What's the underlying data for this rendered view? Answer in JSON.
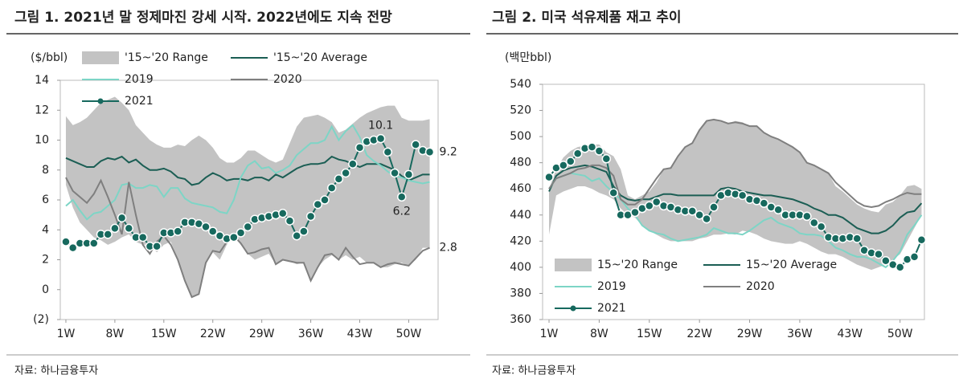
{
  "chart_data": [
    {
      "type": "line",
      "title": "그림 1. 2021년 말 정제마진 강세 시작. 2022년에도 지속 전망",
      "y_label": "($/bbl)",
      "source": "자료: 하나금융투자",
      "x": [
        1,
        2,
        3,
        4,
        5,
        6,
        7,
        8,
        9,
        10,
        11,
        12,
        13,
        14,
        15,
        16,
        17,
        18,
        19,
        20,
        21,
        22,
        23,
        24,
        25,
        26,
        27,
        28,
        29,
        30,
        31,
        32,
        33,
        34,
        35,
        36,
        37,
        38,
        39,
        40,
        41,
        42,
        43,
        44,
        45,
        46,
        47,
        48,
        49,
        50,
        51,
        52,
        53
      ],
      "xlim": [
        0.2,
        54.2
      ],
      "xticks": [
        {
          "value": 1,
          "label": "1W"
        },
        {
          "value": 8,
          "label": "8W"
        },
        {
          "value": 15,
          "label": "15W"
        },
        {
          "value": 22,
          "label": "22W"
        },
        {
          "value": 29,
          "label": "29W"
        },
        {
          "value": 36,
          "label": "36W"
        },
        {
          "value": 43,
          "label": "43W"
        },
        {
          "value": 50,
          "label": "50W"
        }
      ],
      "ylim": [
        -2,
        14
      ],
      "yticks": [
        {
          "value": -2,
          "label": "(2)"
        },
        0,
        2,
        4,
        6,
        8,
        10,
        12,
        14
      ],
      "grid": false,
      "legend_position": "top",
      "series": [
        {
          "name": "'15~'20 Range",
          "color": "#c3c3c3",
          "low": [
            7.0,
            5.5,
            4.5,
            4.0,
            3.5,
            3.3,
            3.0,
            3.2,
            3.5,
            3.7,
            3.2,
            3.0,
            3.0,
            2.5,
            3.0,
            3.2,
            2.0,
            0.5,
            -0.5,
            -0.3,
            1.8,
            2.5,
            2.0,
            3.0,
            3.6,
            3.0,
            2.4,
            2.0,
            2.2,
            2.4,
            1.7,
            2.0,
            1.9,
            1.7,
            1.8,
            0.6,
            1.5,
            2.0,
            2.3,
            2.0,
            2.3,
            2.0,
            2.2,
            1.8,
            1.8,
            1.5,
            1.5,
            1.7,
            1.8,
            1.6,
            2.0,
            2.8,
            2.8
          ],
          "high": [
            11.6,
            11.0,
            11.2,
            11.5,
            12.0,
            12.5,
            12.7,
            12.9,
            12.5,
            12.0,
            11.0,
            10.5,
            10.0,
            9.7,
            9.5,
            9.5,
            9.7,
            9.6,
            10.0,
            10.3,
            10.0,
            9.5,
            8.8,
            8.5,
            8.5,
            8.8,
            9.3,
            9.3,
            9.0,
            8.7,
            8.5,
            8.7,
            9.8,
            10.9,
            11.5,
            11.6,
            11.7,
            11.5,
            11.2,
            10.5,
            10.7,
            11.1,
            11.5,
            11.8,
            12.0,
            12.2,
            12.3,
            12.3,
            11.5,
            11.3,
            11.3,
            11.3,
            11.4
          ]
        },
        {
          "name": "'15~'20 Average",
          "color": "#1b5e54",
          "values": [
            8.8,
            8.6,
            8.4,
            8.2,
            8.2,
            8.6,
            8.8,
            8.7,
            8.9,
            8.5,
            8.7,
            8.3,
            8.0,
            8.0,
            8.1,
            7.9,
            7.5,
            7.4,
            7.0,
            7.1,
            7.5,
            7.8,
            7.6,
            7.3,
            7.4,
            7.4,
            7.3,
            7.5,
            7.5,
            7.3,
            7.7,
            7.5,
            7.8,
            8.1,
            8.3,
            8.4,
            8.4,
            8.5,
            8.9,
            8.7,
            8.6,
            8.4,
            8.2,
            8.4,
            8.4,
            8.4,
            8.2,
            8.0,
            7.6,
            7.3,
            7.5,
            7.7,
            7.7
          ]
        },
        {
          "name": "2019",
          "color": "#7dd5c6",
          "values": [
            5.6,
            6.0,
            5.3,
            4.7,
            5.1,
            5.2,
            5.6,
            6.0,
            7.0,
            7.1,
            6.8,
            6.8,
            7.0,
            6.9,
            6.2,
            6.8,
            6.8,
            6.1,
            5.8,
            5.7,
            5.6,
            5.5,
            5.2,
            5.1,
            6.0,
            7.5,
            8.3,
            8.6,
            8.1,
            8.2,
            7.8,
            8.0,
            8.3,
            9.0,
            9.4,
            9.8,
            9.8,
            10.0,
            10.9,
            10.0,
            10.6,
            11.0,
            10.2,
            9.0,
            8.6,
            8.3,
            7.9,
            7.6,
            7.5,
            7.3,
            7.2,
            7.1,
            7.2
          ]
        },
        {
          "name": "2020",
          "color": "#7f7f7f",
          "values": [
            7.5,
            6.6,
            6.2,
            5.8,
            6.4,
            7.3,
            6.2,
            5.0,
            3.7,
            7.2,
            5.0,
            3.0,
            2.4,
            3.2,
            3.6,
            3.0,
            2.0,
            0.6,
            -0.5,
            -0.3,
            1.8,
            2.6,
            2.5,
            3.2,
            3.6,
            3.1,
            2.4,
            2.5,
            2.7,
            2.8,
            1.7,
            2.0,
            1.9,
            1.8,
            1.8,
            0.6,
            1.5,
            2.3,
            2.4,
            2.0,
            2.8,
            2.2,
            1.7,
            1.8,
            1.8,
            1.5,
            1.7,
            1.8,
            1.7,
            1.6,
            2.1,
            2.6,
            2.8
          ]
        },
        {
          "name": "2021",
          "color": "#17695e",
          "marker": true,
          "values": [
            3.2,
            2.8,
            3.1,
            3.1,
            3.1,
            3.7,
            3.7,
            4.1,
            4.8,
            4.1,
            3.5,
            3.5,
            2.9,
            2.9,
            3.8,
            3.8,
            3.9,
            4.5,
            4.5,
            4.4,
            4.2,
            3.9,
            3.6,
            3.4,
            3.5,
            3.8,
            4.2,
            4.7,
            4.8,
            4.9,
            5.0,
            5.1,
            4.6,
            3.6,
            3.9,
            4.9,
            5.7,
            6.0,
            6.8,
            7.4,
            7.8,
            8.4,
            9.5,
            9.9,
            10.0,
            10.1,
            9.2,
            7.8,
            6.2,
            7.7,
            9.7,
            9.3,
            9.2
          ]
        }
      ],
      "annotations": [
        {
          "text": "10.1",
          "x": 46,
          "y": 10.1,
          "anchor": "above"
        },
        {
          "text": "6.2",
          "x": 49,
          "y": 6.2,
          "anchor": "below"
        },
        {
          "text": "9.2",
          "x": 53,
          "y": 9.2,
          "anchor": "right"
        },
        {
          "text": "2.8",
          "x": 53,
          "y": 2.8,
          "anchor": "right"
        }
      ]
    },
    {
      "type": "line",
      "title": "그림 2. 미국 석유제품 재고 추이",
      "y_label": "(백만bbl)",
      "source": "자료: 하나금융투자",
      "x": [
        1,
        2,
        3,
        4,
        5,
        6,
        7,
        8,
        9,
        10,
        11,
        12,
        13,
        14,
        15,
        16,
        17,
        18,
        19,
        20,
        21,
        22,
        23,
        24,
        25,
        26,
        27,
        28,
        29,
        30,
        31,
        32,
        33,
        34,
        35,
        36,
        37,
        38,
        39,
        40,
        41,
        42,
        43,
        44,
        45,
        46,
        47,
        48,
        49,
        50,
        51,
        52,
        53
      ],
      "xlim": [
        0.1,
        53.4
      ],
      "xticks": [
        {
          "value": 1,
          "label": "1W"
        },
        {
          "value": 8,
          "label": "8W"
        },
        {
          "value": 15,
          "label": "15W"
        },
        {
          "value": 22,
          "label": "22W"
        },
        {
          "value": 29,
          "label": "29W"
        },
        {
          "value": 36,
          "label": "36W"
        },
        {
          "value": 43,
          "label": "43W"
        },
        {
          "value": 50,
          "label": "50W"
        }
      ],
      "ylim": [
        360,
        540
      ],
      "yticks": [
        360,
        380,
        400,
        420,
        440,
        460,
        480,
        500,
        520,
        540
      ],
      "grid": false,
      "legend_position": "bottom",
      "series": [
        {
          "name": "15~'20 Range",
          "color": "#c3c3c3",
          "low": [
            425,
            455,
            458,
            460,
            462,
            462,
            460,
            457,
            455,
            452,
            445,
            440,
            438,
            432,
            428,
            425,
            422,
            420,
            420,
            420,
            420,
            422,
            423,
            425,
            425,
            426,
            425,
            428,
            427,
            425,
            422,
            420,
            419,
            418,
            418,
            420,
            418,
            415,
            412,
            410,
            410,
            408,
            405,
            402,
            400,
            398,
            400,
            402,
            406,
            410,
            420,
            430,
            440
          ],
          "high": [
            460,
            475,
            484,
            489,
            492,
            493,
            494,
            494,
            488,
            485,
            475,
            455,
            452,
            455,
            458,
            465,
            475,
            476,
            485,
            492,
            495,
            505,
            512,
            513,
            512,
            510,
            512,
            511,
            508,
            508,
            503,
            500,
            498,
            495,
            492,
            488,
            480,
            478,
            475,
            472,
            462,
            458,
            453,
            448,
            445,
            443,
            442,
            448,
            450,
            455,
            462,
            463,
            460
          ]
        },
        {
          "name": "15~'20 Average",
          "color": "#1b5e54",
          "values": [
            458,
            470,
            474,
            476,
            477,
            478,
            477,
            475,
            473,
            462,
            455,
            452,
            451,
            452,
            452,
            454,
            456,
            456,
            455,
            455,
            455,
            455,
            455,
            455,
            460,
            461,
            460,
            458,
            457,
            456,
            455,
            455,
            454,
            453,
            452,
            450,
            448,
            445,
            443,
            440,
            440,
            438,
            434,
            430,
            428,
            426,
            426,
            428,
            432,
            438,
            442,
            443,
            449
          ]
        },
        {
          "name": "2019",
          "color": "#7dd5c6",
          "values": [
            460,
            468,
            470,
            472,
            471,
            470,
            466,
            468,
            462,
            457,
            452,
            445,
            440,
            432,
            428,
            426,
            425,
            422,
            420,
            421,
            422,
            423,
            425,
            430,
            428,
            426,
            426,
            425,
            428,
            432,
            436,
            438,
            434,
            432,
            430,
            426,
            425,
            425,
            424,
            420,
            415,
            413,
            410,
            408,
            408,
            406,
            403,
            400,
            405,
            412,
            425,
            432,
            440
          ]
        },
        {
          "name": "2020",
          "color": "#7f7f7f",
          "values": [
            460,
            468,
            470,
            472,
            475,
            476,
            478,
            478,
            476,
            470,
            452,
            448,
            448,
            452,
            460,
            468,
            475,
            476,
            485,
            492,
            495,
            505,
            512,
            513,
            512,
            510,
            511,
            510,
            508,
            508,
            503,
            500,
            498,
            495,
            492,
            488,
            480,
            478,
            475,
            472,
            465,
            460,
            455,
            450,
            447,
            446,
            447,
            450,
            452,
            455,
            457,
            456,
            456
          ]
        },
        {
          "name": "2021",
          "color": "#17695e",
          "marker": true,
          "values": [
            469,
            476,
            478,
            481,
            487,
            491,
            492,
            489,
            483,
            457,
            440,
            440,
            442,
            445,
            447,
            450,
            447,
            446,
            444,
            443,
            443,
            440,
            437,
            446,
            455,
            457,
            456,
            455,
            452,
            451,
            449,
            446,
            444,
            440,
            440,
            440,
            439,
            434,
            431,
            423,
            422,
            422,
            423,
            422,
            413,
            411,
            410,
            405,
            402,
            400,
            406,
            408,
            421
          ]
        }
      ]
    }
  ]
}
